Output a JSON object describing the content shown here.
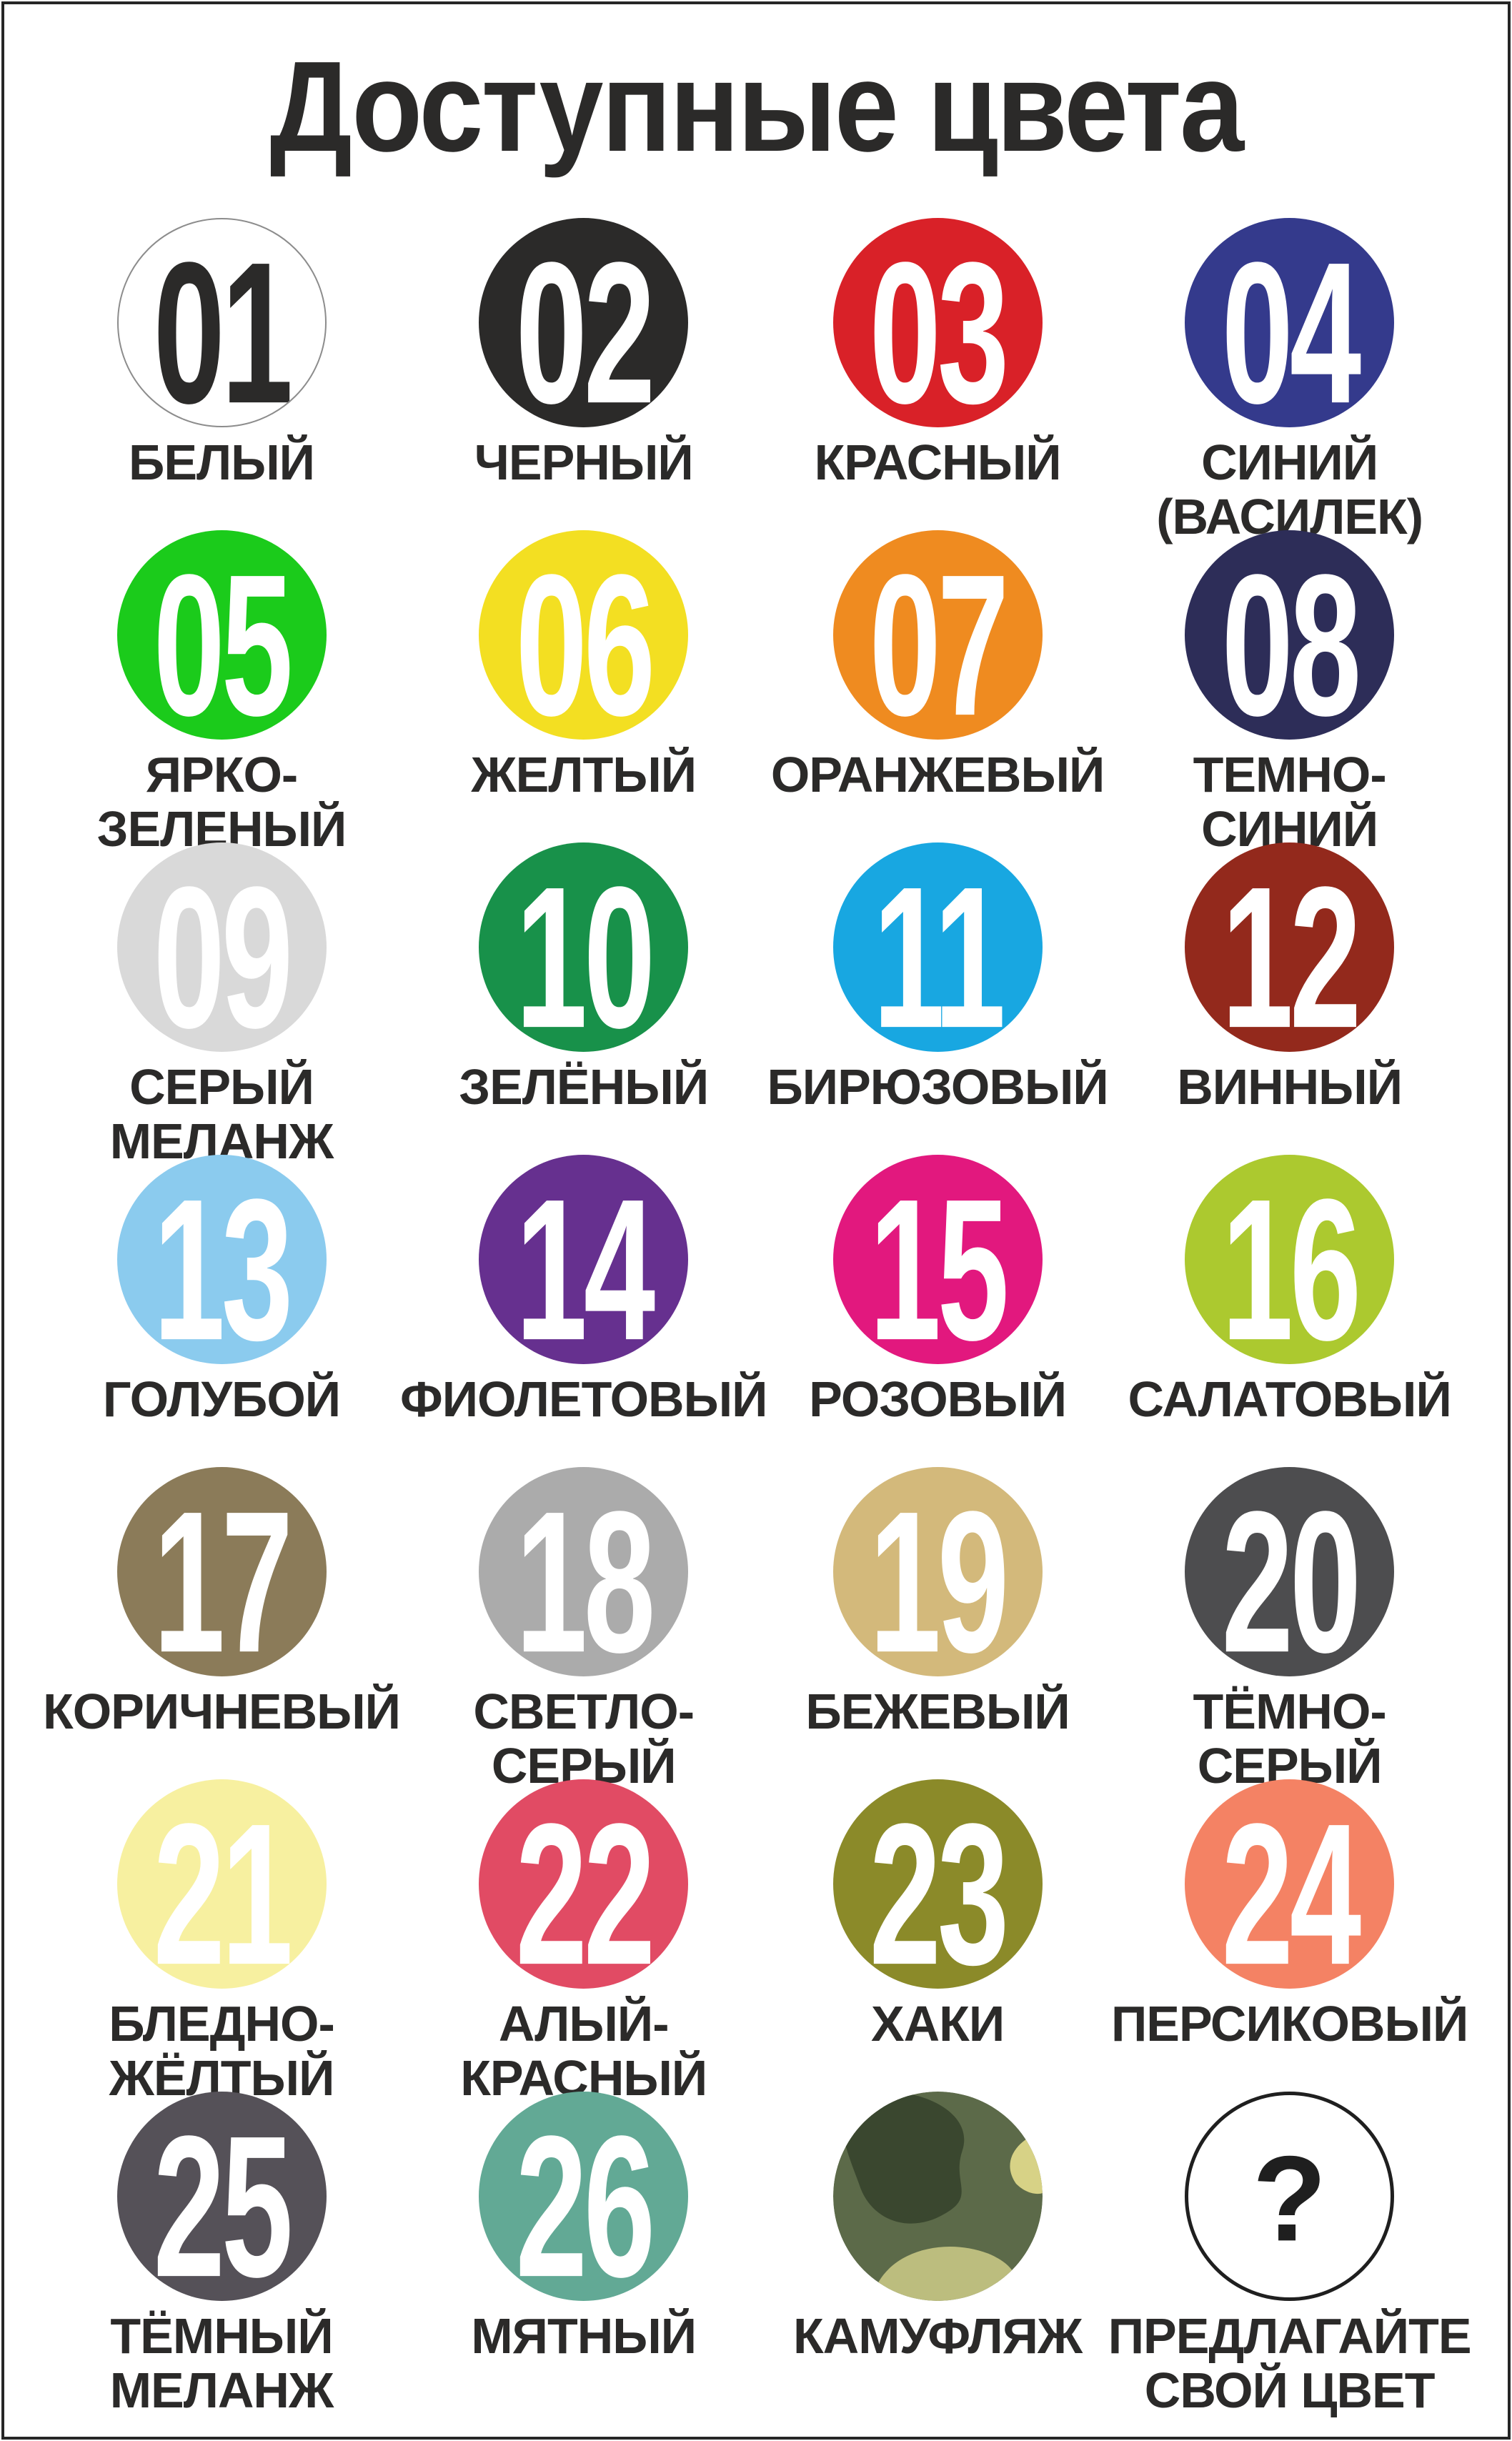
{
  "page": {
    "title": "Доступные цвета",
    "background": "#ffffff",
    "frame_color": "#262626",
    "text_color": "#2b2a29"
  },
  "camo_palette": {
    "base": "#5c6a49",
    "dark": "#3a472f",
    "light": "#d7d286",
    "tan": "#bcbd7e",
    "shadow": "#46543a"
  },
  "colors": [
    {
      "num": "01",
      "lines": [
        "БЕЛЫЙ"
      ],
      "fill": "#ffffff",
      "num_color": "#2b2a29",
      "border": "#8c8c8c"
    },
    {
      "num": "02",
      "lines": [
        "ЧЕРНЫЙ"
      ],
      "fill": "#2b2a29",
      "num_color": "#ffffff"
    },
    {
      "num": "03",
      "lines": [
        "КРАСНЫЙ"
      ],
      "fill": "#d92128",
      "num_color": "#ffffff"
    },
    {
      "num": "04",
      "lines": [
        "СИНИЙ",
        "(ВАСИЛЕК)"
      ],
      "fill": "#343a8c",
      "num_color": "#ffffff"
    },
    {
      "num": "05",
      "lines": [
        "ЯРКО-",
        "ЗЕЛЕНЫЙ"
      ],
      "fill": "#1bcb1b",
      "num_color": "#ffffff"
    },
    {
      "num": "06",
      "lines": [
        "ЖЕЛТЫЙ"
      ],
      "fill": "#f3df22",
      "num_color": "#ffffff"
    },
    {
      "num": "07",
      "lines": [
        "ОРАНЖЕВЫЙ"
      ],
      "fill": "#ef8b20",
      "num_color": "#ffffff"
    },
    {
      "num": "08",
      "lines": [
        "ТЕМНО-",
        "СИНИЙ"
      ],
      "fill": "#2d2d58",
      "num_color": "#ffffff"
    },
    {
      "num": "09",
      "lines": [
        "СЕРЫЙ",
        "МЕЛАНЖ"
      ],
      "fill": "#d9d9d9",
      "num_color": "#ffffff"
    },
    {
      "num": "10",
      "lines": [
        "ЗЕЛЁНЫЙ"
      ],
      "fill": "#18914a",
      "num_color": "#ffffff"
    },
    {
      "num": "11",
      "lines": [
        "БИРЮЗОВЫЙ"
      ],
      "fill": "#18a7e1",
      "num_color": "#ffffff"
    },
    {
      "num": "12",
      "lines": [
        "ВИННЫЙ"
      ],
      "fill": "#93291c",
      "num_color": "#ffffff"
    },
    {
      "num": "13",
      "lines": [
        "ГОЛУБОЙ"
      ],
      "fill": "#8bcbee",
      "num_color": "#ffffff"
    },
    {
      "num": "14",
      "lines": [
        "ФИОЛЕТОВЫЙ"
      ],
      "fill": "#66308f",
      "num_color": "#ffffff"
    },
    {
      "num": "15",
      "lines": [
        "РОЗОВЫЙ"
      ],
      "fill": "#e2187e",
      "num_color": "#ffffff"
    },
    {
      "num": "16",
      "lines": [
        "САЛАТОВЫЙ"
      ],
      "fill": "#acc92f",
      "num_color": "#ffffff"
    },
    {
      "num": "17",
      "lines": [
        "КОРИЧНЕВЫЙ"
      ],
      "fill": "#8b7b59",
      "num_color": "#ffffff"
    },
    {
      "num": "18",
      "lines": [
        "СВЕТЛО-",
        "СЕРЫЙ"
      ],
      "fill": "#ababab",
      "num_color": "#ffffff"
    },
    {
      "num": "19",
      "lines": [
        "БЕЖЕВЫЙ"
      ],
      "fill": "#d3b97b",
      "num_color": "#ffffff"
    },
    {
      "num": "20",
      "lines": [
        "ТЁМНО-",
        "СЕРЫЙ"
      ],
      "fill": "#4d4d4f",
      "num_color": "#ffffff"
    },
    {
      "num": "21",
      "lines": [
        "БЛЕДНО-",
        "ЖЁЛТЫЙ"
      ],
      "fill": "#f7f0a0",
      "num_color": "#ffffff"
    },
    {
      "num": "22",
      "lines": [
        "АЛЫЙ-",
        "КРАСНЫЙ"
      ],
      "fill": "#e14b64",
      "num_color": "#ffffff"
    },
    {
      "num": "23",
      "lines": [
        "ХАКИ"
      ],
      "fill": "#8b8a29",
      "num_color": "#ffffff"
    },
    {
      "num": "24",
      "lines": [
        "ПЕРСИКОВЫЙ"
      ],
      "fill": "#f48264",
      "num_color": "#ffffff"
    },
    {
      "num": "25",
      "lines": [
        "ТЁМНЫЙ",
        "МЕЛАНЖ"
      ],
      "fill": "#555158",
      "num_color": "#ffffff"
    },
    {
      "num": "26",
      "lines": [
        "МЯТНЫЙ"
      ],
      "fill": "#62a995",
      "num_color": "#ffffff"
    },
    {
      "num": "",
      "lines": [
        "КАМУФЛЯЖ"
      ],
      "type": "camo"
    },
    {
      "num": "?",
      "lines": [
        "ПРЕДЛАГАЙТЕ",
        "СВОЙ ЦВЕТ"
      ],
      "type": "custom",
      "fill": "#ffffff",
      "num_color": "#1f1f1f"
    }
  ]
}
